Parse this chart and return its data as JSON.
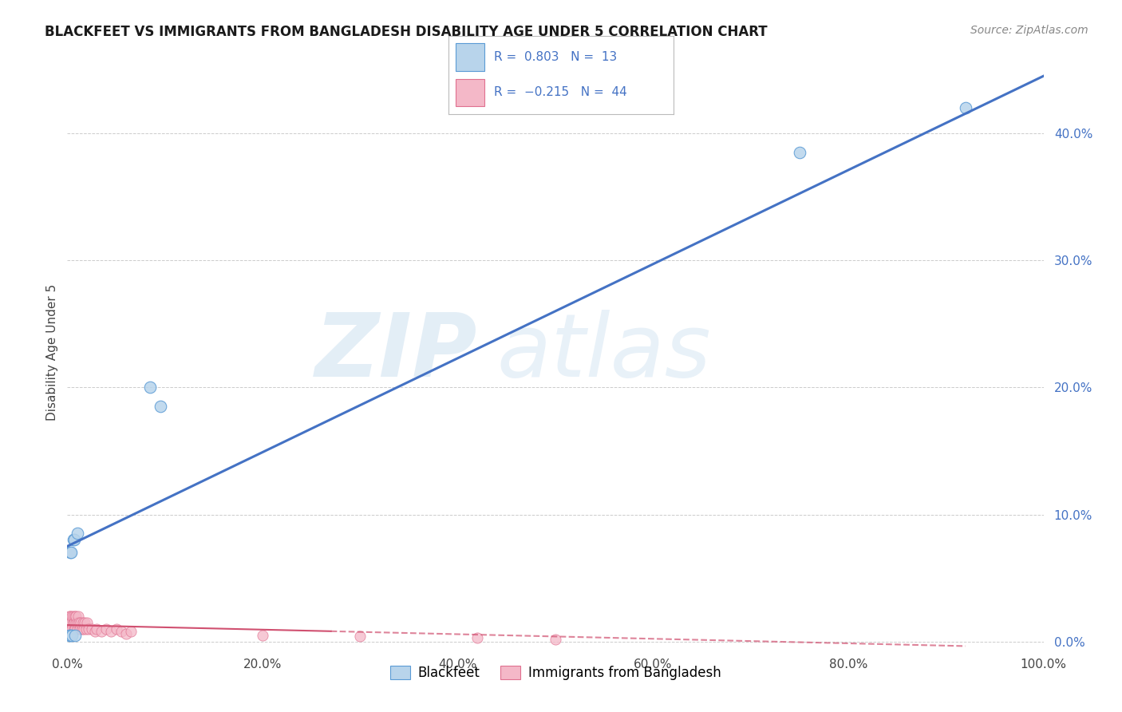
{
  "title": "BLACKFEET VS IMMIGRANTS FROM BANGLADESH DISABILITY AGE UNDER 5 CORRELATION CHART",
  "source": "Source: ZipAtlas.com",
  "ylabel": "Disability Age Under 5",
  "watermark_zip": "ZIP",
  "watermark_atlas": "atlas",
  "blackfeet": {
    "color": "#b8d4eb",
    "edge_color": "#5b9bd5",
    "line_color": "#4472c4",
    "R": 0.803,
    "N": 13,
    "x": [
      0.002,
      0.003,
      0.003,
      0.004,
      0.005,
      0.006,
      0.007,
      0.008,
      0.01,
      0.085,
      0.095,
      0.75,
      0.92
    ],
    "y": [
      0.005,
      0.005,
      0.07,
      0.07,
      0.005,
      0.08,
      0.08,
      0.005,
      0.085,
      0.2,
      0.185,
      0.385,
      0.42
    ]
  },
  "bangladesh": {
    "color": "#f4b8c8",
    "edge_color": "#e07090",
    "line_color": "#d05070",
    "R": -0.215,
    "N": 44,
    "x": [
      0.001,
      0.002,
      0.002,
      0.003,
      0.003,
      0.004,
      0.004,
      0.005,
      0.005,
      0.006,
      0.006,
      0.007,
      0.007,
      0.008,
      0.008,
      0.009,
      0.009,
      0.01,
      0.01,
      0.011,
      0.012,
      0.013,
      0.014,
      0.015,
      0.016,
      0.017,
      0.018,
      0.019,
      0.02,
      0.022,
      0.025,
      0.028,
      0.03,
      0.035,
      0.04,
      0.045,
      0.05,
      0.055,
      0.06,
      0.065,
      0.2,
      0.3,
      0.42,
      0.5
    ],
    "y": [
      0.015,
      0.01,
      0.02,
      0.015,
      0.02,
      0.01,
      0.015,
      0.02,
      0.01,
      0.015,
      0.02,
      0.01,
      0.015,
      0.02,
      0.01,
      0.015,
      0.02,
      0.01,
      0.015,
      0.02,
      0.015,
      0.01,
      0.015,
      0.01,
      0.015,
      0.01,
      0.015,
      0.01,
      0.015,
      0.01,
      0.01,
      0.008,
      0.01,
      0.008,
      0.01,
      0.008,
      0.01,
      0.008,
      0.006,
      0.008,
      0.005,
      0.004,
      0.003,
      0.002
    ]
  },
  "xlim": [
    0.0,
    1.0
  ],
  "ylim": [
    -0.005,
    0.46
  ],
  "xticks": [
    0.0,
    0.2,
    0.4,
    0.6,
    0.8,
    1.0
  ],
  "xtick_labels": [
    "0.0%",
    "20.0%",
    "40.0%",
    "60.0%",
    "80.0%",
    "100.0%"
  ],
  "yticks_right": [
    0.0,
    0.1,
    0.2,
    0.3,
    0.4
  ],
  "ytick_labels_right": [
    "0.0%",
    "10.0%",
    "20.0%",
    "30.0%",
    "40.0%"
  ],
  "background_color": "#ffffff",
  "grid_color": "#cccccc",
  "bf_line_intercept": 0.075,
  "bf_line_slope": 0.37,
  "bd_line_intercept": 0.013,
  "bd_line_slope": -0.018
}
